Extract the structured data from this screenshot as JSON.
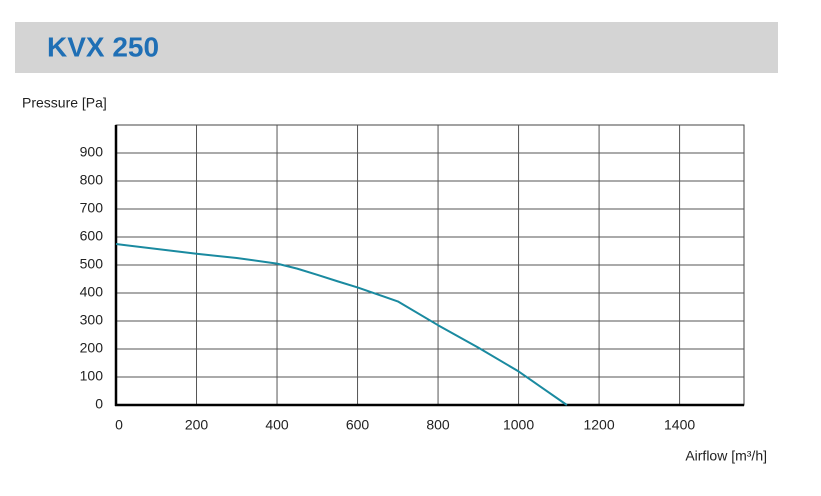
{
  "chart_data": {
    "type": "line",
    "title": "KVX 250",
    "y_label": "Pressure [Pa]",
    "x_label": "Airflow [m³/h]",
    "x": [
      0,
      200,
      300,
      400,
      450,
      500,
      550,
      600,
      700,
      800,
      900,
      1000,
      1050,
      1120
    ],
    "series": [
      {
        "color": "#1a8aa0",
        "values": [
          575,
          540,
          525,
          505,
          487,
          465,
          442,
          420,
          370,
          285,
          205,
          120,
          70,
          0
        ]
      }
    ],
    "xlim": [
      0,
      1560
    ],
    "ylim": [
      0,
      1000
    ],
    "xticks": [
      0,
      200,
      400,
      600,
      800,
      1000,
      1200,
      1400
    ],
    "yticks": [
      0,
      100,
      200,
      300,
      400,
      500,
      600,
      700,
      800,
      900
    ],
    "grid": true
  }
}
